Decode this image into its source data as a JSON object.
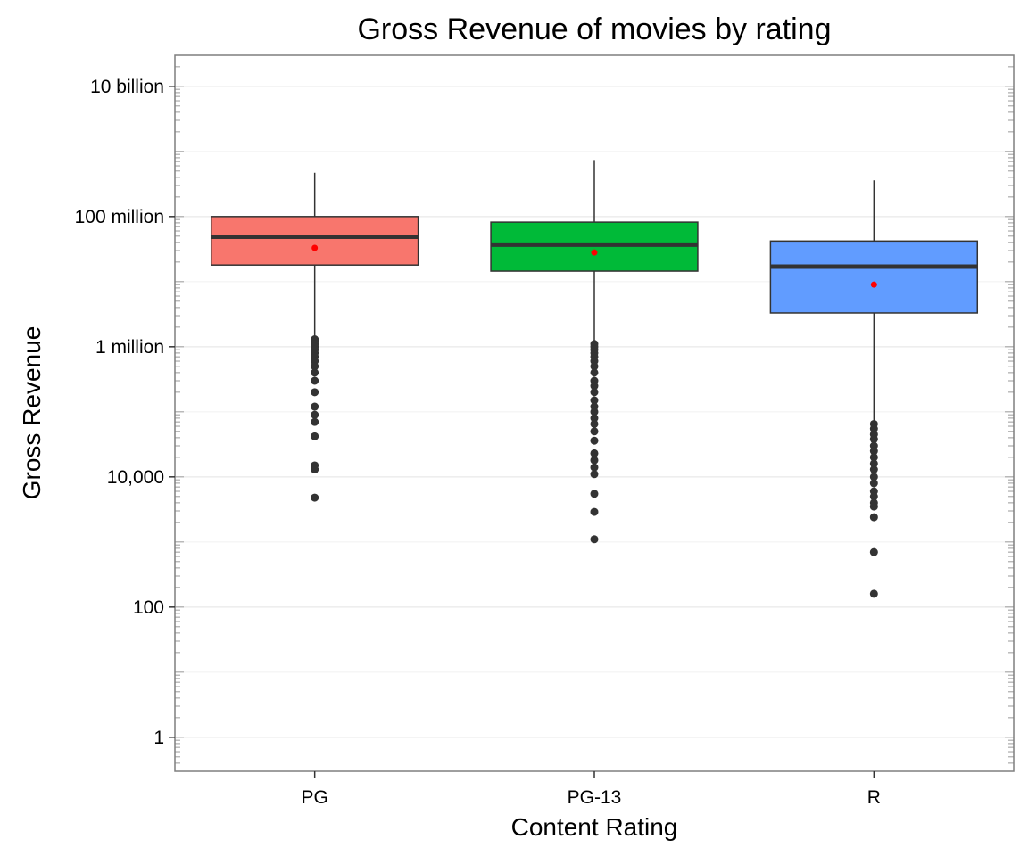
{
  "chart_data": {
    "type": "box",
    "title": "Gross Revenue of movies by rating",
    "xlabel": "Content Rating",
    "ylabel": "Gross Revenue",
    "y_scale": "log10",
    "ylim": [
      0.3,
      30000000000
    ],
    "y_ticks": [
      {
        "value": 1,
        "label": "1"
      },
      {
        "value": 100,
        "label": "100"
      },
      {
        "value": 10000,
        "label": "10,000"
      },
      {
        "value": 1000000,
        "label": "1 million"
      },
      {
        "value": 100000000,
        "label": "100 million"
      },
      {
        "value": 10000000000,
        "label": "10 billion"
      }
    ],
    "grid": true,
    "legend": "none",
    "categories": [
      "PG",
      "PG-13",
      "R"
    ],
    "mean_color": "#ff0000",
    "outlier_color": "#333333",
    "boxes": [
      {
        "category": "PG",
        "color": "#f8766d",
        "whisker_low": 1300000,
        "q1": 18000000,
        "median": 49000000,
        "q3": 100000000,
        "whisker_high": 470000000,
        "mean": 33000000,
        "outliers": [
          1300000,
          1200000,
          1100000,
          1000000,
          900000,
          800000,
          700000,
          600000,
          500000,
          400000,
          300000,
          200000,
          120000,
          90000,
          70000,
          42000,
          15000,
          13000,
          4800
        ]
      },
      {
        "category": "PG-13",
        "color": "#00ba38",
        "whisker_low": 1100000,
        "q1": 14500000,
        "median": 37000000,
        "q3": 82000000,
        "whisker_high": 740000000,
        "mean": 28000000,
        "outliers": [
          1100000,
          1000000,
          900000,
          800000,
          700000,
          600000,
          500000,
          400000,
          300000,
          250000,
          200000,
          150000,
          120000,
          100000,
          80000,
          65000,
          50000,
          36000,
          23000,
          18000,
          14000,
          11000,
          5500,
          2900,
          1100
        ]
      },
      {
        "category": "R",
        "color": "#619cff",
        "whisker_low": 65000,
        "q1": 3300000,
        "median": 17000000,
        "q3": 42000000,
        "whisker_high": 360000000,
        "mean": 9000000,
        "outliers": [
          65000,
          55000,
          45000,
          38000,
          30000,
          25000,
          20000,
          16000,
          13000,
          10000,
          8000,
          6000,
          5000,
          4000,
          3500,
          2400,
          700,
          160
        ]
      }
    ]
  }
}
